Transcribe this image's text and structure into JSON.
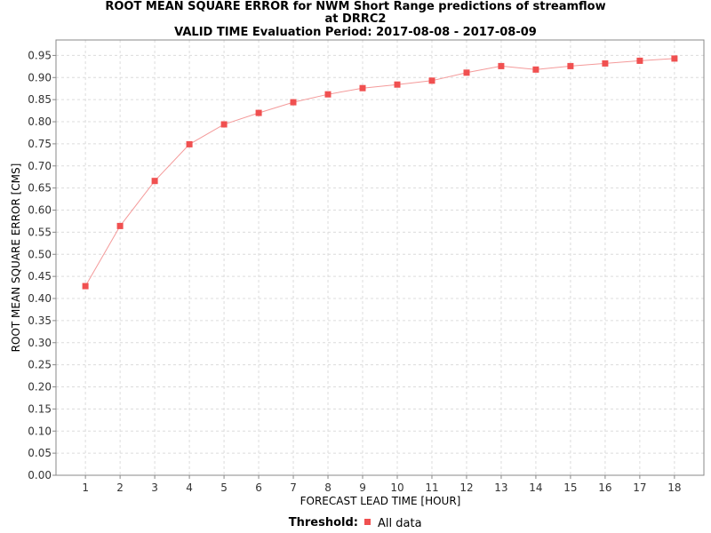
{
  "chart_data": {
    "type": "line",
    "title_lines": [
      "ROOT MEAN SQUARE ERROR for NWM Short Range predictions of streamflow",
      "at DRRC2",
      "VALID TIME Evaluation Period: 2017-08-08 - 2017-08-09"
    ],
    "xlabel": "FORECAST LEAD TIME [HOUR]",
    "ylabel": "ROOT MEAN SQUARE ERROR [CMS]",
    "xlim": [
      0.15,
      18.85
    ],
    "ylim": [
      0.0,
      0.985
    ],
    "x_ticks": [
      1,
      2,
      3,
      4,
      5,
      6,
      7,
      8,
      9,
      10,
      11,
      12,
      13,
      14,
      15,
      16,
      17,
      18
    ],
    "y_ticks": [
      "0.00",
      "0.05",
      "0.10",
      "0.15",
      "0.20",
      "0.25",
      "0.30",
      "0.35",
      "0.40",
      "0.45",
      "0.50",
      "0.55",
      "0.60",
      "0.65",
      "0.70",
      "0.75",
      "0.80",
      "0.85",
      "0.90",
      "0.95"
    ],
    "grid": true,
    "legend": {
      "title": "Threshold:",
      "placement": "bottom-center"
    },
    "series": [
      {
        "name": "All data",
        "color": "#f05050",
        "line_color": "#f49a9a",
        "x": [
          1,
          2,
          3,
          4,
          5,
          6,
          7,
          8,
          9,
          10,
          11,
          12,
          13,
          14,
          15,
          16,
          17,
          18
        ],
        "values": [
          0.428,
          0.564,
          0.666,
          0.749,
          0.794,
          0.82,
          0.844,
          0.862,
          0.876,
          0.884,
          0.893,
          0.911,
          0.926,
          0.918,
          0.926,
          0.932,
          0.938,
          0.943
        ]
      }
    ]
  }
}
